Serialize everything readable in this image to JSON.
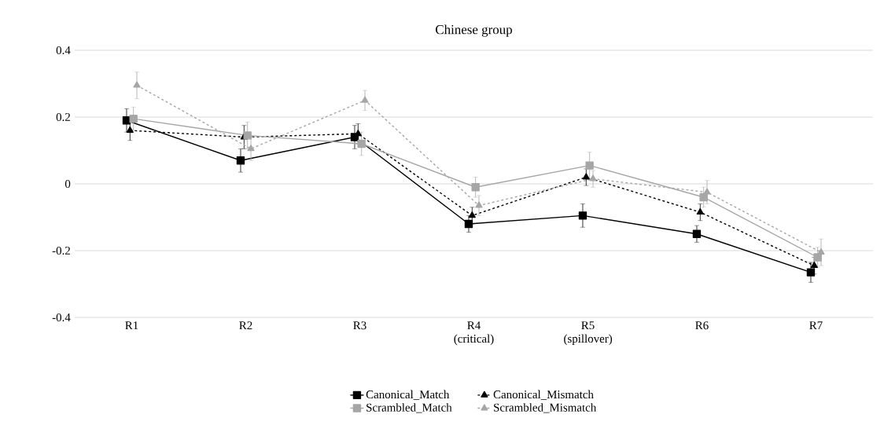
{
  "chart_data": {
    "type": "line",
    "title": "Chinese group",
    "categories": [
      "R1",
      "R2",
      "R3",
      "R4 (critical)",
      "R5 (spillover)",
      "R6",
      "R7"
    ],
    "series": [
      {
        "name": "Canonical_Match",
        "color": "#000000",
        "marker": "square",
        "line_style": "solid",
        "values": [
          0.19,
          0.07,
          0.14,
          -0.12,
          -0.095,
          -0.15,
          -0.265
        ],
        "errors": [
          0.035,
          0.035,
          0.035,
          0.025,
          0.035,
          0.025,
          0.03
        ]
      },
      {
        "name": "Canonical_Mismatch",
        "color": "#000000",
        "marker": "triangle",
        "line_style": "dashed",
        "values": [
          0.16,
          0.14,
          0.15,
          -0.095,
          0.02,
          -0.085,
          -0.245
        ],
        "errors": [
          0.03,
          0.035,
          0.03,
          0.025,
          0.025,
          0.025,
          0.025
        ]
      },
      {
        "name": "Scrambled_Match",
        "color": "#a6a6a6",
        "marker": "square",
        "line_style": "solid",
        "values": [
          0.195,
          0.145,
          0.12,
          -0.01,
          0.055,
          -0.04,
          -0.22
        ],
        "errors": [
          0.035,
          0.04,
          0.035,
          0.03,
          0.04,
          0.03,
          0.03
        ]
      },
      {
        "name": "Scrambled_Mismatch",
        "color": "#a6a6a6",
        "marker": "triangle",
        "line_style": "dashed",
        "values": [
          0.295,
          0.105,
          0.25,
          -0.065,
          0.015,
          -0.025,
          -0.205
        ],
        "errors": [
          0.04,
          0.035,
          0.03,
          0.03,
          0.025,
          0.035,
          0.04
        ]
      }
    ],
    "ylim": [
      -0.4,
      0.4
    ],
    "yticks": [
      -0.4,
      -0.2,
      0,
      0.2,
      0.4
    ],
    "grid": "y",
    "legend": "bottom"
  }
}
